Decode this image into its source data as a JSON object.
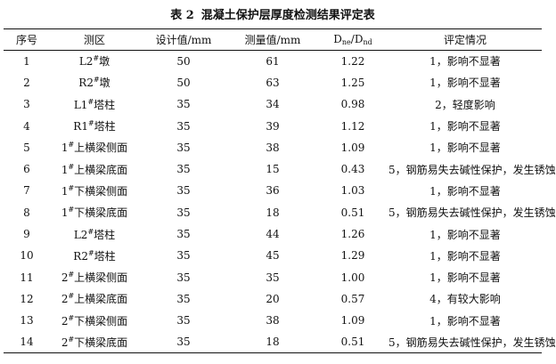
{
  "caption": {
    "number": "表 2",
    "title": "混凝土保护层厚度检测结果评定表"
  },
  "headers": {
    "seq": "序号",
    "area": "测区",
    "design": "设计值/mm",
    "measured": "测量值/mm",
    "ratio_main": "D",
    "ratio_sub1": "ne",
    "ratio_slash": "/D",
    "ratio_sub2": "nd",
    "rating": "评定情况"
  },
  "rows": [
    {
      "seq": "1",
      "area_pre": "L2",
      "sup": "#",
      "area_post": "墩",
      "design": "50",
      "measured": "61",
      "ratio": "1.22",
      "rating": "1，影响不显著"
    },
    {
      "seq": "2",
      "area_pre": "R2",
      "sup": "#",
      "area_post": "墩",
      "design": "50",
      "measured": "63",
      "ratio": "1.25",
      "rating": "1，影响不显著"
    },
    {
      "seq": "3",
      "area_pre": "L1",
      "sup": "#",
      "area_post": "塔柱",
      "design": "35",
      "measured": "34",
      "ratio": "0.98",
      "rating": "2，轻度影响"
    },
    {
      "seq": "4",
      "area_pre": "R1",
      "sup": "#",
      "area_post": "塔柱",
      "design": "35",
      "measured": "39",
      "ratio": "1.12",
      "rating": "1，影响不显著"
    },
    {
      "seq": "5",
      "area_pre": "1",
      "sup": "#",
      "area_post": "上横梁侧面",
      "design": "35",
      "measured": "38",
      "ratio": "1.09",
      "rating": "1，影响不显著"
    },
    {
      "seq": "6",
      "area_pre": "1",
      "sup": "#",
      "area_post": "上横梁底面",
      "design": "35",
      "measured": "15",
      "ratio": "0.43",
      "rating": "5，钢筋易失去碱性保护，发生锈蚀"
    },
    {
      "seq": "7",
      "area_pre": "1",
      "sup": "#",
      "area_post": "下横梁侧面",
      "design": "35",
      "measured": "36",
      "ratio": "1.03",
      "rating": "1，影响不显著"
    },
    {
      "seq": "8",
      "area_pre": "1",
      "sup": "#",
      "area_post": "下横梁底面",
      "design": "35",
      "measured": "18",
      "ratio": "0.51",
      "rating": "5，钢筋易失去碱性保护，发生锈蚀"
    },
    {
      "seq": "9",
      "area_pre": "L2",
      "sup": "#",
      "area_post": "塔柱",
      "design": "35",
      "measured": "44",
      "ratio": "1.26",
      "rating": "1，影响不显著"
    },
    {
      "seq": "10",
      "area_pre": "R2",
      "sup": "#",
      "area_post": "塔柱",
      "design": "35",
      "measured": "45",
      "ratio": "1.29",
      "rating": "1，影响不显著"
    },
    {
      "seq": "11",
      "area_pre": "2",
      "sup": "#",
      "area_post": "上横梁侧面",
      "design": "35",
      "measured": "35",
      "ratio": "1.00",
      "rating": "1，影响不显著"
    },
    {
      "seq": "12",
      "area_pre": "2",
      "sup": "#",
      "area_post": "上横梁底面",
      "design": "35",
      "measured": "20",
      "ratio": "0.57",
      "rating": "4，有较大影响"
    },
    {
      "seq": "13",
      "area_pre": "2",
      "sup": "#",
      "area_post": "下横梁侧面",
      "design": "35",
      "measured": "38",
      "ratio": "1.09",
      "rating": "1，影响不显著"
    },
    {
      "seq": "14",
      "area_pre": "2",
      "sup": "#",
      "area_post": "下横梁底面",
      "design": "35",
      "measured": "18",
      "ratio": "0.51",
      "rating": "5，钢筋易失去碱性保护，发生锈蚀"
    }
  ]
}
